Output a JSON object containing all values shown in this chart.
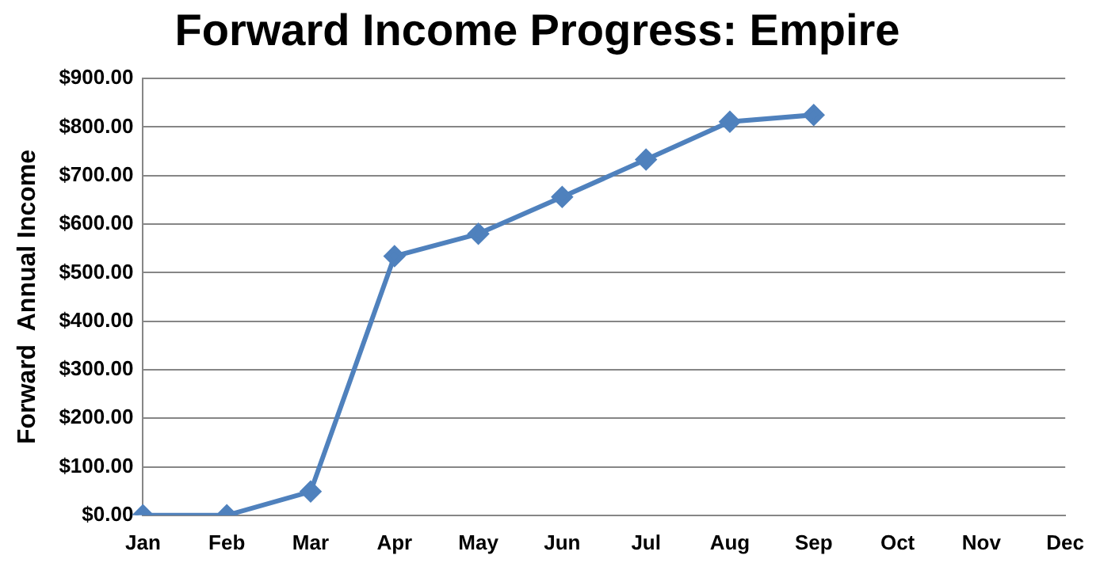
{
  "chart_data": {
    "type": "line",
    "title": "Forward Income Progress: Empire",
    "ylabel": "Forward  Annual Income",
    "categories": [
      "Jan",
      "Feb",
      "Mar",
      "Apr",
      "May",
      "Jun",
      "Jul",
      "Aug",
      "Sep",
      "Oct",
      "Nov",
      "Dec"
    ],
    "series": [
      {
        "color": "#4f81bd",
        "values": [
          0,
          0,
          49,
          534,
          580,
          656,
          733,
          811,
          825,
          null,
          null,
          null
        ]
      }
    ],
    "ylim": [
      0,
      900
    ],
    "yticks": [
      {
        "value": 0,
        "label": "$0.00"
      },
      {
        "value": 100,
        "label": "$100.00"
      },
      {
        "value": 200,
        "label": "$200.00"
      },
      {
        "value": 300,
        "label": "$300.00"
      },
      {
        "value": 400,
        "label": "$400.00"
      },
      {
        "value": 500,
        "label": "$500.00"
      },
      {
        "value": 600,
        "label": "$600.00"
      },
      {
        "value": 700,
        "label": "$700.00"
      },
      {
        "value": 800,
        "label": "$800.00"
      },
      {
        "value": 900,
        "label": "$900.00"
      }
    ],
    "grid": "y",
    "legend": false,
    "marker": "diamond",
    "line_style": "solid"
  }
}
